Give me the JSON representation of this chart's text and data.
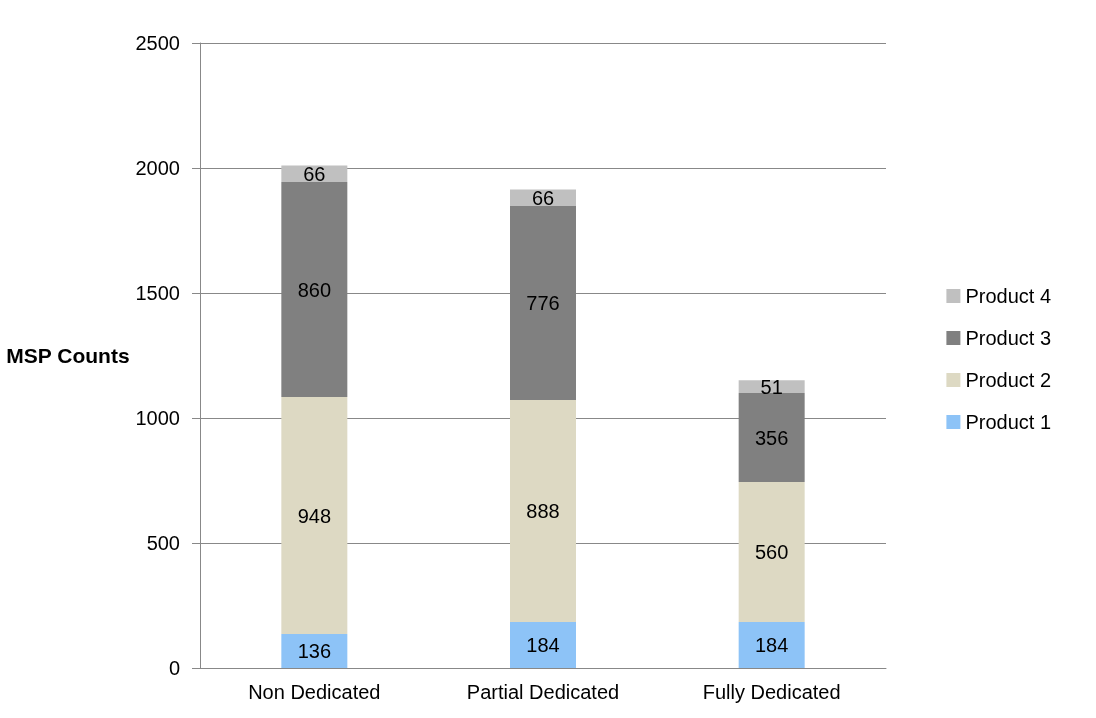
{
  "chart_data": {
    "type": "bar",
    "stacked": true,
    "ylabel": "MSP Counts",
    "categories": [
      "Non Dedicated",
      "Partial Dedicated",
      "Fully Dedicated"
    ],
    "series": [
      {
        "name": "Product 1",
        "color": "#8dc3f7",
        "values": [
          136,
          184,
          184
        ]
      },
      {
        "name": "Product 2",
        "color": "#ddd9c3",
        "values": [
          948,
          888,
          560
        ]
      },
      {
        "name": "Product 3",
        "color": "#808080",
        "values": [
          860,
          776,
          356
        ]
      },
      {
        "name": "Product 4",
        "color": "#c0c0c0",
        "values": [
          66,
          66,
          51
        ]
      }
    ],
    "ylim": [
      0,
      2500
    ],
    "yticks": [
      0,
      500,
      1000,
      1500,
      2000,
      2500
    ],
    "grid": "y",
    "legend": "right",
    "data_labels": true
  }
}
